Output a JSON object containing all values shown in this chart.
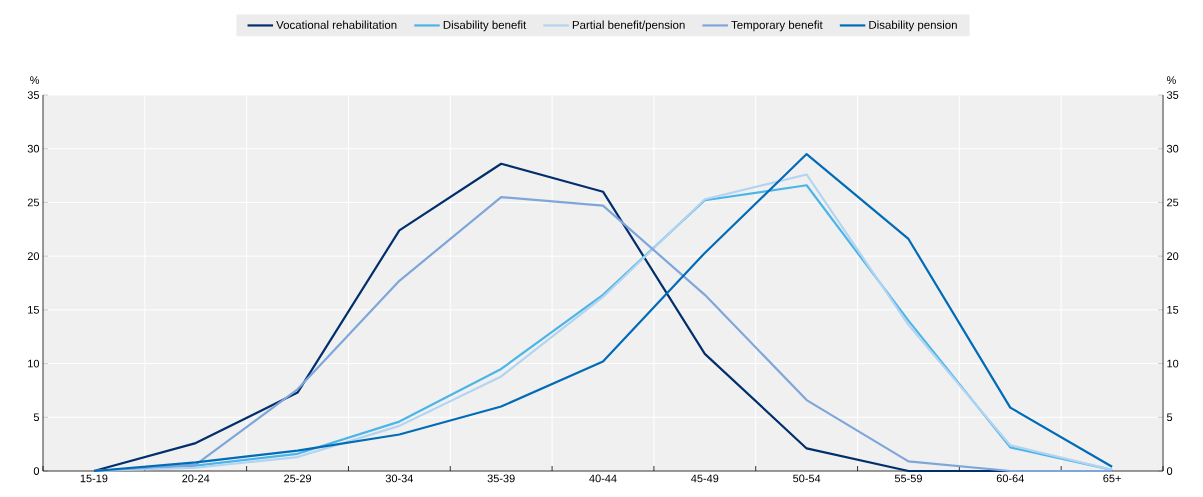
{
  "chart_data": {
    "type": "line",
    "ylabel": "%",
    "y2label": "%",
    "categories": [
      "15-19",
      "20-24",
      "25-29",
      "30-34",
      "35-39",
      "40-44",
      "45-49",
      "50-54",
      "55-59",
      "60-64",
      "65+"
    ],
    "series": [
      {
        "name": "Vocational rehabilitation",
        "color": "#002f6c",
        "values": [
          0,
          2.6,
          7.3,
          22.4,
          28.6,
          26.0,
          10.9,
          2.1,
          0,
          0,
          0
        ]
      },
      {
        "name": "Disability benefit",
        "color": "#4cb5e8",
        "values": [
          0,
          0.5,
          1.6,
          4.6,
          9.5,
          16.4,
          25.2,
          26.6,
          14.0,
          2.2,
          0.1
        ]
      },
      {
        "name": "Partial benefit/pension",
        "color": "#b3d4f0",
        "values": [
          0,
          0.3,
          1.3,
          4.2,
          8.8,
          16.2,
          25.3,
          27.6,
          13.6,
          2.4,
          0.1
        ]
      },
      {
        "name": "Temporary benefit",
        "color": "#7fa6da",
        "values": [
          0,
          0.6,
          7.6,
          17.7,
          25.5,
          24.7,
          16.4,
          6.6,
          0.9,
          0,
          0
        ]
      },
      {
        "name": "Disability pension",
        "color": "#006bb6",
        "values": [
          0,
          0.8,
          1.9,
          3.4,
          6.0,
          10.2,
          20.3,
          29.5,
          21.6,
          5.9,
          0.4
        ]
      }
    ],
    "ylim": [
      0,
      35
    ],
    "yticks": [
      0,
      5,
      10,
      15,
      20,
      25,
      30,
      35
    ],
    "y2lim": [
      0,
      35
    ],
    "y2ticks": [
      0,
      5,
      10,
      15,
      20,
      25,
      30,
      35
    ],
    "grid": true,
    "legend": "top"
  }
}
